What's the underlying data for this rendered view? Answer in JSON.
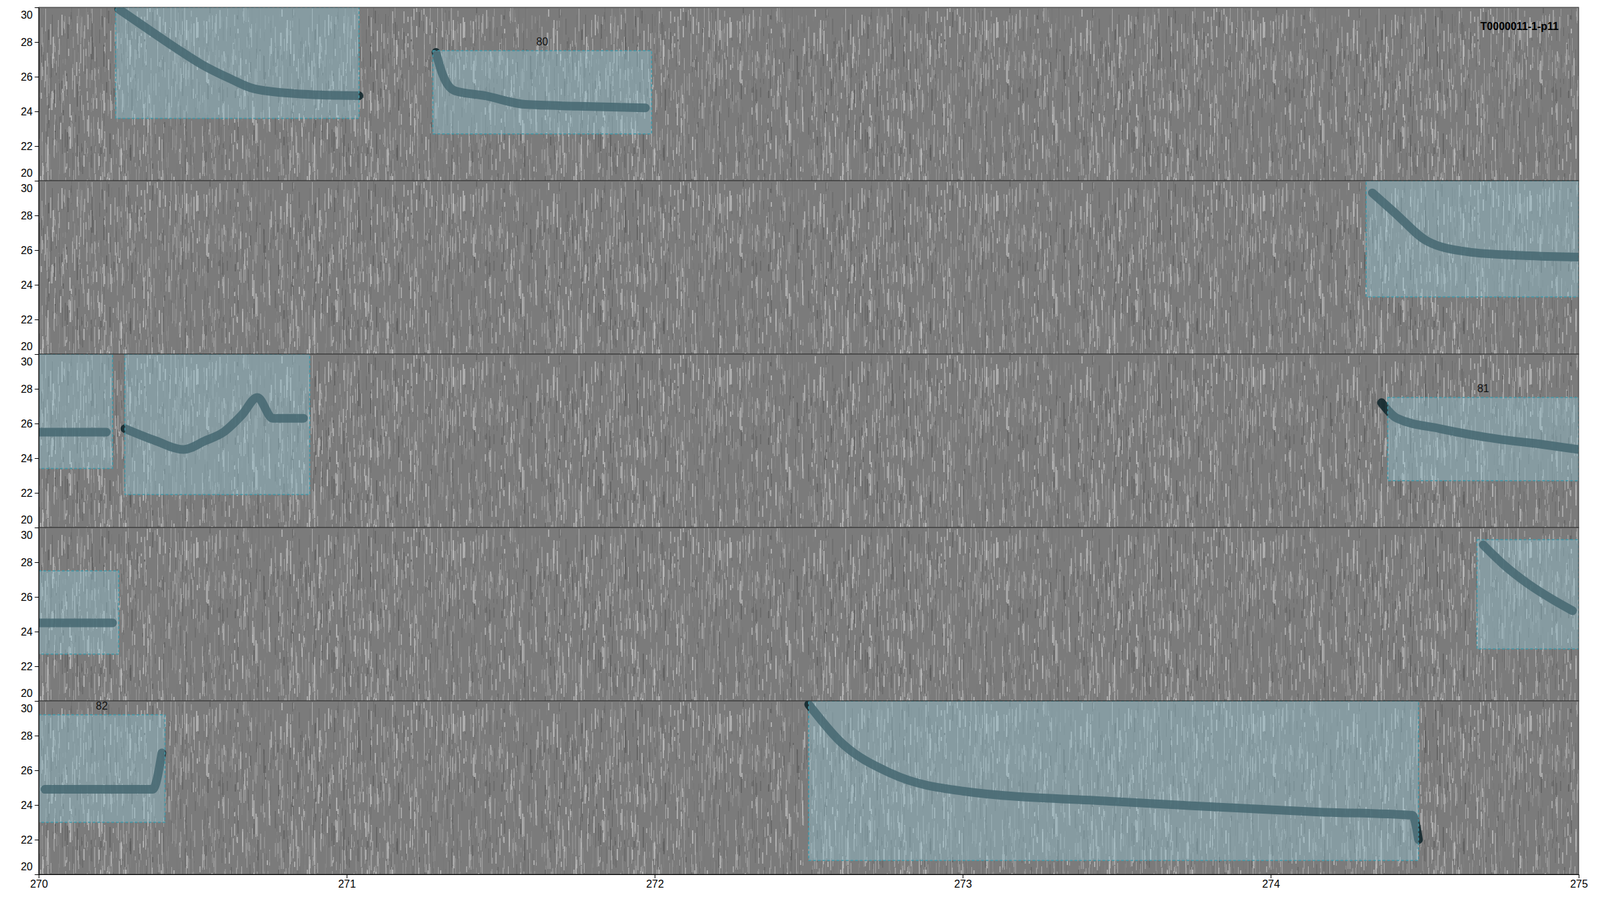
{
  "chart_data": [
    {
      "type": "spectrogram",
      "title": "T0000011-1-p11",
      "xlim": [
        250,
        255
      ],
      "ylim": [
        20,
        30
      ],
      "yticks": [
        20,
        22,
        24,
        26,
        28,
        30
      ],
      "tick_labels": "y",
      "boxes": [
        {
          "x": [
            250.25,
            251.04
          ],
          "y": [
            23.6,
            30
          ]
        },
        {
          "x": [
            251.28,
            251.99
          ],
          "y": [
            22.7,
            27.5
          ],
          "label": "80"
        }
      ],
      "series": [
        {
          "x": [
            250.26,
            250.35,
            250.45,
            250.53,
            250.62,
            250.7,
            250.85,
            251.04
          ],
          "values": [
            29.9,
            28.8,
            27.6,
            26.7,
            25.9,
            25.3,
            25.0,
            24.9
          ]
        },
        {
          "x": [
            251.29,
            251.31,
            251.35,
            251.45,
            251.58,
            251.75,
            251.97
          ],
          "values": [
            27.4,
            26.2,
            25.2,
            24.9,
            24.4,
            24.3,
            24.2
          ]
        }
      ]
    },
    {
      "type": "spectrogram",
      "xlim": [
        255,
        260
      ],
      "ylim": [
        20,
        30
      ],
      "yticks": [
        20,
        22,
        24,
        26,
        28,
        30
      ],
      "tick_labels": "y",
      "boxes": [
        {
          "x": [
            259.31,
            260
          ],
          "y": [
            23.3,
            30
          ]
        }
      ],
      "series": [
        {
          "x": [
            259.33,
            259.4,
            259.51,
            259.64,
            259.8,
            260
          ],
          "values": [
            29.3,
            28.2,
            26.5,
            25.9,
            25.7,
            25.6
          ]
        }
      ]
    },
    {
      "type": "spectrogram",
      "xlim": [
        260,
        265
      ],
      "ylim": [
        20,
        30
      ],
      "yticks": [
        20,
        22,
        24,
        26,
        28,
        30
      ],
      "tick_labels": "y",
      "boxes": [
        {
          "x": [
            260,
            260.24
          ],
          "y": [
            23.4,
            30
          ]
        },
        {
          "x": [
            260.28,
            260.88
          ],
          "y": [
            21.9,
            30
          ]
        },
        {
          "x": [
            264.38,
            265
          ],
          "y": [
            22.7,
            27.5
          ],
          "label": "81"
        }
      ],
      "series": [
        {
          "x": [
            260,
            260.22
          ],
          "values": [
            25.5,
            25.5
          ]
        },
        {
          "x": [
            260.28,
            260.38,
            260.47,
            260.54,
            260.6,
            260.66,
            260.71,
            260.76,
            260.86
          ],
          "values": [
            25.7,
            25.0,
            24.5,
            25.0,
            25.5,
            26.5,
            27.5,
            26.3,
            26.3
          ]
        },
        {
          "x": [
            264.36,
            264.41,
            264.55,
            264.74,
            264.88,
            265
          ],
          "values": [
            27.2,
            26.3,
            25.7,
            25.1,
            24.8,
            24.5
          ]
        }
      ]
    },
    {
      "type": "spectrogram",
      "xlim": [
        265,
        270
      ],
      "ylim": [
        20,
        30
      ],
      "yticks": [
        20,
        22,
        24,
        26,
        28,
        30
      ],
      "tick_labels": "y",
      "boxes": [
        {
          "x": [
            265,
            265.26
          ],
          "y": [
            22.7,
            27.5
          ]
        },
        {
          "x": [
            269.67,
            270
          ],
          "y": [
            23,
            29.3
          ]
        }
      ],
      "series": [
        {
          "x": [
            265,
            265.24
          ],
          "values": [
            24.5,
            24.5
          ]
        },
        {
          "x": [
            269.69,
            269.76,
            269.84,
            269.92,
            269.98
          ],
          "values": [
            29,
            27.8,
            26.7,
            25.8,
            25.2
          ]
        }
      ]
    },
    {
      "type": "spectrogram",
      "xlim": [
        270,
        275
      ],
      "ylim": [
        20,
        30
      ],
      "xticks": [
        270,
        271,
        272,
        273,
        274,
        275
      ],
      "yticks": [
        20,
        22,
        24,
        26,
        28,
        30
      ],
      "boxes": [
        {
          "x": [
            270,
            270.41
          ],
          "y": [
            23,
            29.2
          ],
          "label": "82"
        },
        {
          "x": [
            272.5,
            274.48
          ],
          "y": [
            20.8,
            30
          ]
        }
      ],
      "series": [
        {
          "x": [
            270.02,
            270.37,
            270.4
          ],
          "values": [
            24.9,
            24.9,
            27
          ]
        },
        {
          "x": [
            272.5,
            272.6,
            272.77,
            273,
            273.49,
            273.8,
            274.15,
            274.46,
            274.48
          ],
          "values": [
            29.8,
            27.7,
            25.8,
            24.8,
            24.2,
            23.9,
            23.6,
            23.4,
            22.0
          ]
        }
      ]
    }
  ]
}
